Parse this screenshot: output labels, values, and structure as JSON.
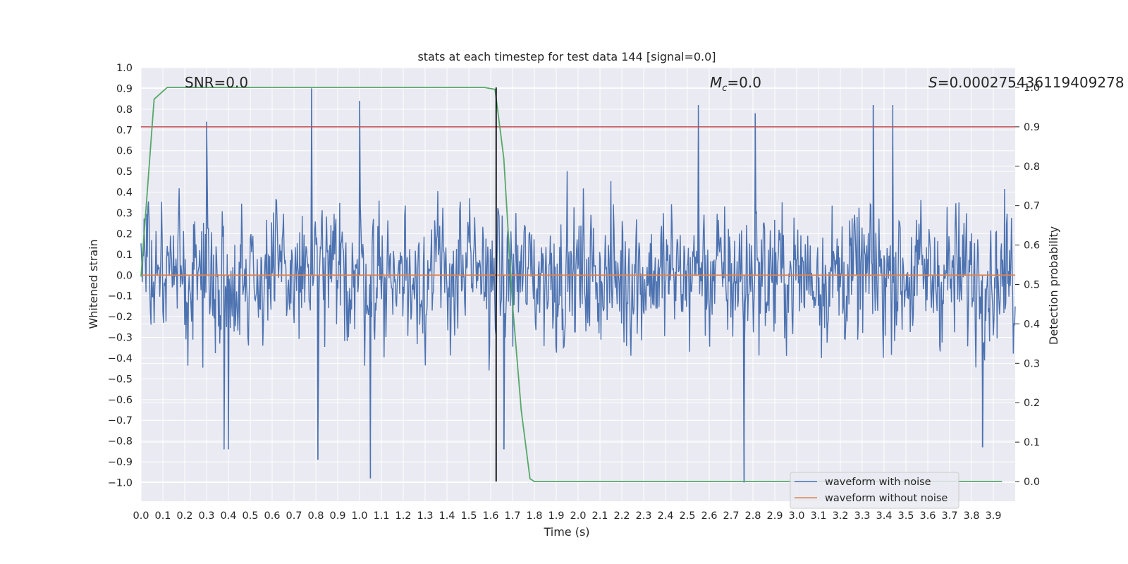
{
  "chart_data": {
    "type": "line",
    "title": "stats at each timestep for test data 144 [signal=0.0]",
    "xlabel": "Time (s)",
    "ylabel": "Whitened strain",
    "y2label": "Detection probability",
    "xlim": [
      0.0,
      4.0
    ],
    "ylim": [
      -1.09,
      1.0
    ],
    "y2lim": [
      -0.05,
      1.05
    ],
    "xticks": [
      "0.0",
      "0.1",
      "0.2",
      "0.3",
      "0.4",
      "0.5",
      "0.6",
      "0.7",
      "0.8",
      "0.9",
      "1.0",
      "1.1",
      "1.2",
      "1.3",
      "1.4",
      "1.5",
      "1.6",
      "1.7",
      "1.8",
      "1.9",
      "2.0",
      "2.1",
      "2.2",
      "2.3",
      "2.4",
      "2.5",
      "2.6",
      "2.7",
      "2.8",
      "2.9",
      "3.0",
      "3.1",
      "3.2",
      "3.3",
      "3.4",
      "3.5",
      "3.6",
      "3.7",
      "3.8",
      "3.9"
    ],
    "yticks": [
      "1.0",
      "0.9",
      "0.8",
      "0.7",
      "0.6",
      "0.5",
      "0.4",
      "0.3",
      "0.2",
      "0.1",
      "0.0",
      "−0.1",
      "−0.2",
      "−0.3",
      "−0.4",
      "−0.5",
      "−0.6",
      "−0.7",
      "−0.8",
      "−0.9",
      "−1.0"
    ],
    "y2ticks": [
      "1.0",
      "0.9",
      "0.8",
      "0.7",
      "0.6",
      "0.5",
      "0.4",
      "0.3",
      "0.2",
      "0.1",
      "0.0"
    ],
    "grid": true,
    "legend_position": "lower-right",
    "annotations": {
      "snr": "SNR=0.0",
      "mc_symbol": "M",
      "mc_sub": "c",
      "mc_value": "=0.0",
      "s_symbol": "S",
      "s_value": "=0.000275436119409278"
    },
    "series": [
      {
        "name": "waveform with noise",
        "axis": "left",
        "color": "#4c72b0",
        "kind": "noise",
        "amplitude": 0.45,
        "peaks": [
          {
            "x": 0.78,
            "y": 0.9
          },
          {
            "x": 1.0,
            "y": 0.84
          },
          {
            "x": 0.3,
            "y": 0.74
          },
          {
            "x": 2.55,
            "y": 0.82
          },
          {
            "x": 2.81,
            "y": 0.78
          },
          {
            "x": 3.35,
            "y": 0.82
          },
          {
            "x": 3.44,
            "y": 0.82
          },
          {
            "x": 1.05,
            "y": -0.98
          },
          {
            "x": 0.81,
            "y": -0.89
          },
          {
            "x": 2.76,
            "y": -1.0
          },
          {
            "x": 1.66,
            "y": -0.84
          },
          {
            "x": 3.85,
            "y": -0.83
          },
          {
            "x": 0.38,
            "y": -0.84
          },
          {
            "x": 0.4,
            "y": -0.84
          }
        ]
      },
      {
        "name": "waveform without noise",
        "axis": "left",
        "color": "#dd8452",
        "x": [
          0.0,
          4.0
        ],
        "y": [
          0.0,
          0.0
        ]
      },
      {
        "name": "detection probability",
        "axis": "right",
        "color": "#55a868",
        "x": [
          0.0,
          0.06,
          0.12,
          0.5,
          1.0,
          1.5,
          1.57,
          1.62,
          1.66,
          1.7,
          1.74,
          1.78,
          1.8,
          2.0,
          2.5,
          3.0,
          3.5,
          3.94
        ],
        "y": [
          0.52,
          0.97,
          1.0,
          1.0,
          1.0,
          1.0,
          1.0,
          0.995,
          0.82,
          0.45,
          0.18,
          0.007,
          0.0,
          0.0,
          0.0,
          0.0,
          0.0,
          0.0
        ]
      }
    ],
    "threshold": {
      "axis": "right",
      "value": 0.9,
      "color": "#c44e52"
    },
    "marker_vline": {
      "x": 1.625,
      "color": "#000000"
    }
  }
}
